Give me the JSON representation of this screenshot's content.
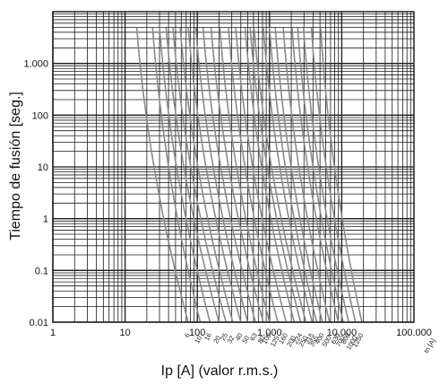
{
  "chart_data": {
    "type": "line",
    "x_scale": "log",
    "y_scale": "log",
    "xlabel": "Ip [A] (valor r.m.s.)",
    "ylabel": "Tiempo de fusión [seg.]",
    "xlim": [
      1,
      100000
    ],
    "ylim": [
      0.01,
      10000
    ],
    "x_ticks": [
      {
        "value": 1,
        "label": "1"
      },
      {
        "value": 10,
        "label": "10"
      },
      {
        "value": 100,
        "label": "100"
      },
      {
        "value": 1000,
        "label": "1.000"
      },
      {
        "value": 10000,
        "label": "10.000"
      },
      {
        "value": 100000,
        "label": "100.000"
      }
    ],
    "y_ticks": [
      {
        "value": 0.01,
        "label": "0.01"
      },
      {
        "value": 0.1,
        "label": "0.1"
      },
      {
        "value": 1,
        "label": "1"
      },
      {
        "value": 10,
        "label": "10"
      },
      {
        "value": 100,
        "label": "100"
      },
      {
        "value": 1000,
        "label": "1.000"
      }
    ],
    "grid": true,
    "rating_axis_label": "In [A]",
    "curve_color": "#8a8a8a",
    "grid_color": "#1a1a1a",
    "series": [
      {
        "name": "6",
        "top": [
          14.5,
          5000
        ],
        "bottom": [
          75,
          0.01
        ]
      },
      {
        "name": "10",
        "top": [
          24,
          5000
        ],
        "bottom": [
          110,
          0.01
        ]
      },
      {
        "name": "16",
        "top": [
          30,
          5000
        ],
        "bottom": [
          150,
          0.01
        ]
      },
      {
        "name": "20",
        "top": [
          37,
          5000
        ],
        "bottom": [
          200,
          0.01
        ]
      },
      {
        "name": "25",
        "top": [
          46,
          5000
        ],
        "bottom": [
          250,
          0.01
        ]
      },
      {
        "name": "32",
        "top": [
          58,
          5000
        ],
        "bottom": [
          310,
          0.01
        ]
      },
      {
        "name": "40",
        "top": [
          75,
          5000
        ],
        "bottom": [
          400,
          0.01
        ]
      },
      {
        "name": "50",
        "top": [
          95,
          5000
        ],
        "bottom": [
          500,
          0.01
        ]
      },
      {
        "name": "63",
        "top": [
          120,
          5000
        ],
        "bottom": [
          640,
          0.01
        ]
      },
      {
        "name": "80",
        "top": [
          155,
          5000
        ],
        "bottom": [
          820,
          0.01
        ]
      },
      {
        "name": "100",
        "top": [
          205,
          5000
        ],
        "bottom": [
          1000,
          0.01
        ]
      },
      {
        "name": "125",
        "top": [
          270,
          5000
        ],
        "bottom": [
          1300,
          0.01
        ]
      },
      {
        "name": "160",
        "top": [
          340,
          5000
        ],
        "bottom": [
          1700,
          0.01
        ]
      },
      {
        "name": "200",
        "top": [
          460,
          5000
        ],
        "bottom": [
          2200,
          0.01
        ]
      },
      {
        "name": "224",
        "top": [
          540,
          5000
        ],
        "bottom": [
          2700,
          0.01
        ]
      },
      {
        "name": "250",
        "top": [
          610,
          5000
        ],
        "bottom": [
          3200,
          0.01
        ]
      },
      {
        "name": "315",
        "top": [
          820,
          5000
        ],
        "bottom": [
          3900,
          0.01
        ]
      },
      {
        "name": "355",
        "top": [
          1000,
          5000
        ],
        "bottom": [
          4500,
          0.01
        ]
      },
      {
        "name": "400",
        "top": [
          1200,
          5000
        ],
        "bottom": [
          5400,
          0.01
        ]
      },
      {
        "name": "500",
        "top": [
          1550,
          5000
        ],
        "bottom": [
          6800,
          0.01
        ]
      },
      {
        "name": "630",
        "top": [
          2050,
          5000
        ],
        "bottom": [
          9000,
          0.01
        ]
      },
      {
        "name": "700",
        "top": [
          2450,
          5000
        ],
        "bottom": [
          10500,
          0.01
        ]
      },
      {
        "name": "800",
        "top": [
          2950,
          5000
        ],
        "bottom": [
          12500,
          0.01
        ]
      },
      {
        "name": "1000",
        "top": [
          3800,
          5000
        ],
        "bottom": [
          15500,
          0.01
        ]
      },
      {
        "name": "1250",
        "top": [
          5100,
          5000
        ],
        "bottom": [
          19000,
          0.01
        ]
      }
    ],
    "rating_labels": [
      "6",
      "10",
      "16",
      "20",
      "25",
      "32",
      "40",
      "50",
      "63",
      "80",
      "100",
      "125",
      "160",
      "200",
      "224",
      "250",
      "315",
      "355",
      "400",
      "500",
      "630",
      "700",
      "800",
      "1000",
      "1250"
    ]
  }
}
